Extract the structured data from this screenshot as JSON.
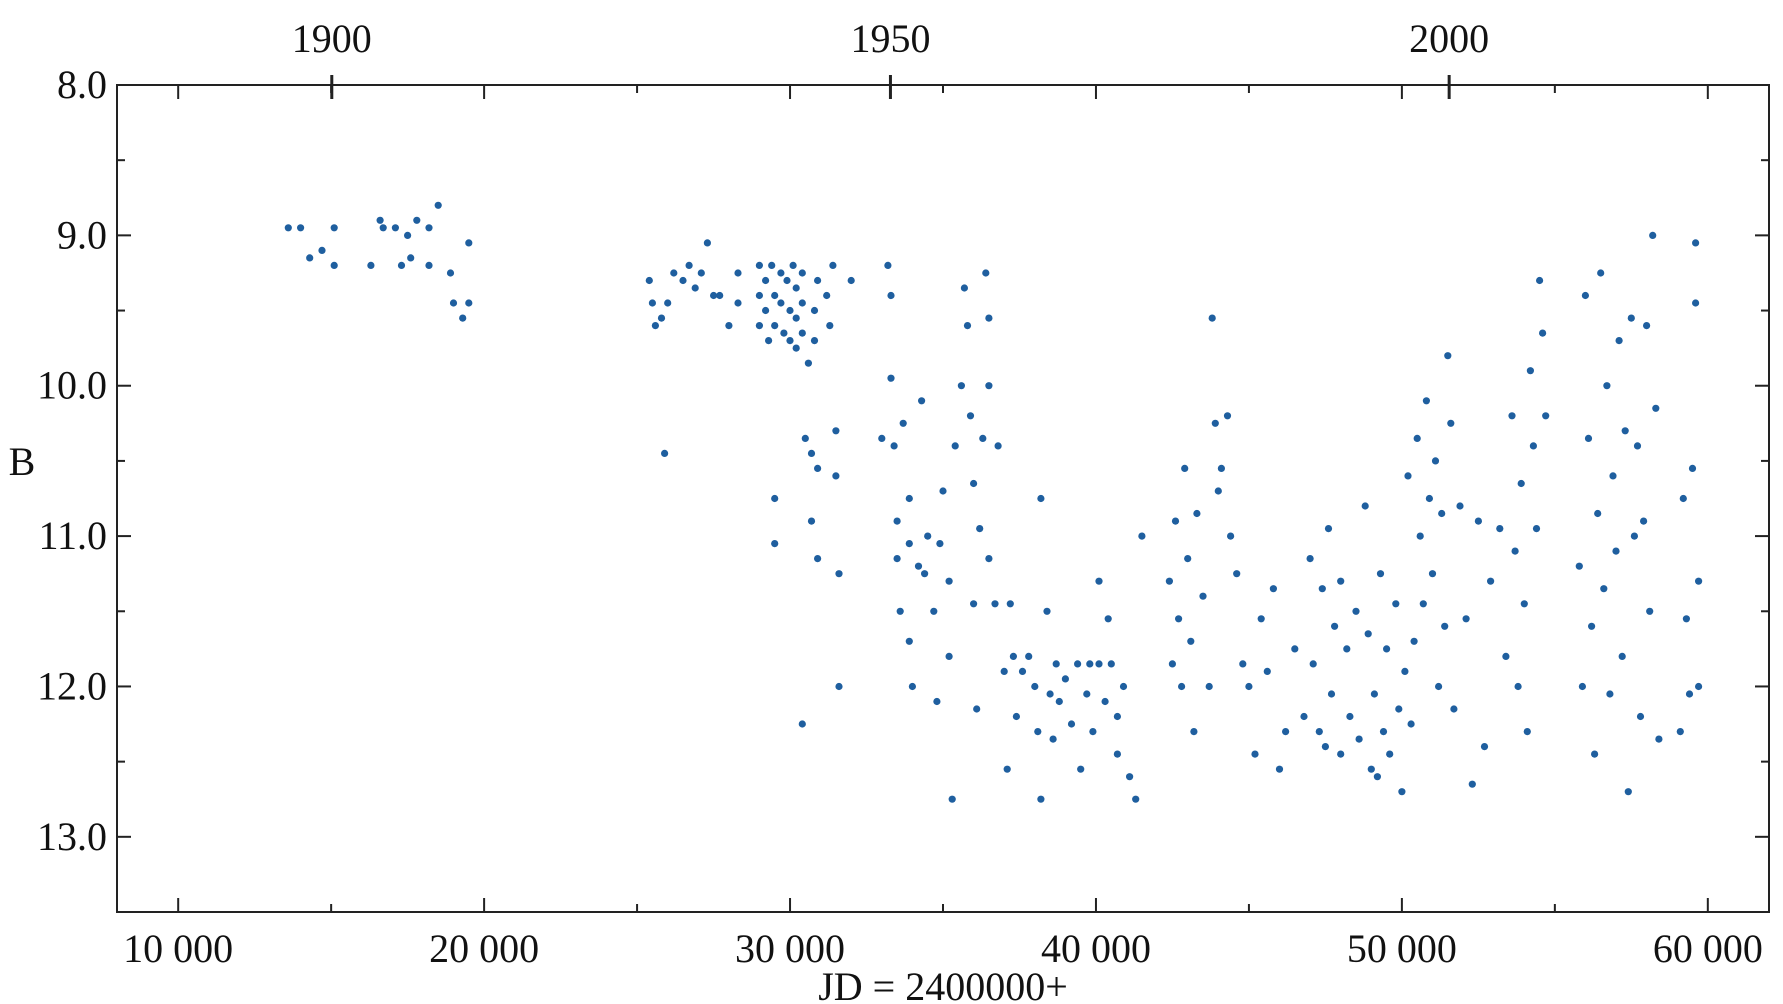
{
  "chart_data": {
    "type": "scatter",
    "title": "",
    "xlabel": "JD = 2400000+",
    "ylabel": "B",
    "xlim": [
      8000,
      62000
    ],
    "ylim": [
      8.0,
      13.5
    ],
    "y_inverted": true,
    "x_ticks": [
      10000,
      20000,
      30000,
      40000,
      50000,
      60000
    ],
    "x_tick_labels": [
      "10 000",
      "20 000",
      "30 000",
      "40 000",
      "50 000",
      "60 000"
    ],
    "y_ticks": [
      8.0,
      9.0,
      10.0,
      11.0,
      12.0,
      13.0
    ],
    "y_tick_labels": [
      "8.0",
      "9.0",
      "10.0",
      "11.0",
      "12.0",
      "13.0"
    ],
    "top_axis": {
      "ticks_jd": [
        15021,
        33282,
        51545
      ],
      "labels": [
        "1900",
        "1950",
        "2000"
      ]
    },
    "grid": false,
    "legend": "none",
    "marker_color": "#1f5f9f",
    "series": [
      {
        "points": [
          [
            13600,
            8.95
          ],
          [
            14000,
            8.95
          ],
          [
            14300,
            9.15
          ],
          [
            14700,
            9.1
          ],
          [
            15100,
            8.95
          ],
          [
            15100,
            9.2
          ],
          [
            16300,
            9.2
          ],
          [
            16600,
            8.9
          ],
          [
            16700,
            8.95
          ],
          [
            17100,
            8.95
          ],
          [
            17300,
            9.2
          ],
          [
            17500,
            9.0
          ],
          [
            17600,
            9.15
          ],
          [
            17800,
            8.9
          ],
          [
            18200,
            9.2
          ],
          [
            18200,
            8.95
          ],
          [
            18500,
            8.8
          ],
          [
            18900,
            9.25
          ],
          [
            19000,
            9.45
          ],
          [
            19300,
            9.55
          ],
          [
            19500,
            9.05
          ],
          [
            19500,
            9.45
          ],
          [
            25400,
            9.3
          ],
          [
            25500,
            9.45
          ],
          [
            25600,
            9.6
          ],
          [
            25800,
            9.55
          ],
          [
            25900,
            10.45
          ],
          [
            26000,
            9.45
          ],
          [
            26200,
            9.25
          ],
          [
            26500,
            9.3
          ],
          [
            26700,
            9.2
          ],
          [
            26900,
            9.35
          ],
          [
            27100,
            9.25
          ],
          [
            27300,
            9.05
          ],
          [
            27500,
            9.4
          ],
          [
            27700,
            9.4
          ],
          [
            28000,
            9.6
          ],
          [
            28300,
            9.25
          ],
          [
            28300,
            9.45
          ],
          [
            29000,
            9.2
          ],
          [
            29000,
            9.4
          ],
          [
            29000,
            9.6
          ],
          [
            29200,
            9.3
          ],
          [
            29200,
            9.5
          ],
          [
            29300,
            9.7
          ],
          [
            29400,
            9.2
          ],
          [
            29500,
            9.4
          ],
          [
            29500,
            9.6
          ],
          [
            29500,
            10.75
          ],
          [
            29500,
            11.05
          ],
          [
            29700,
            9.25
          ],
          [
            29700,
            9.45
          ],
          [
            29800,
            9.65
          ],
          [
            29900,
            9.3
          ],
          [
            30000,
            9.5
          ],
          [
            30000,
            9.7
          ],
          [
            30100,
            9.2
          ],
          [
            30200,
            9.35
          ],
          [
            30200,
            9.55
          ],
          [
            30200,
            9.75
          ],
          [
            30400,
            9.25
          ],
          [
            30400,
            9.45
          ],
          [
            30400,
            9.65
          ],
          [
            30400,
            12.25
          ],
          [
            30500,
            10.35
          ],
          [
            30600,
            9.85
          ],
          [
            30700,
            10.45
          ],
          [
            30700,
            10.9
          ],
          [
            30800,
            9.5
          ],
          [
            30800,
            9.7
          ],
          [
            30900,
            9.3
          ],
          [
            30900,
            10.55
          ],
          [
            30900,
            11.15
          ],
          [
            31200,
            9.4
          ],
          [
            31300,
            9.6
          ],
          [
            31400,
            9.2
          ],
          [
            31500,
            10.3
          ],
          [
            31500,
            10.6
          ],
          [
            31600,
            11.25
          ],
          [
            31600,
            12.0
          ],
          [
            32000,
            9.3
          ],
          [
            33000,
            10.35
          ],
          [
            33200,
            9.2
          ],
          [
            33300,
            9.4
          ],
          [
            33300,
            9.95
          ],
          [
            33400,
            10.4
          ],
          [
            33500,
            10.9
          ],
          [
            33500,
            11.15
          ],
          [
            33600,
            11.5
          ],
          [
            33700,
            10.25
          ],
          [
            33900,
            10.75
          ],
          [
            33900,
            11.05
          ],
          [
            33900,
            11.7
          ],
          [
            34000,
            12.0
          ],
          [
            34200,
            11.2
          ],
          [
            34300,
            10.1
          ],
          [
            34400,
            11.25
          ],
          [
            34500,
            11.0
          ],
          [
            34700,
            11.5
          ],
          [
            34800,
            12.1
          ],
          [
            34900,
            11.05
          ],
          [
            35000,
            10.7
          ],
          [
            35200,
            11.3
          ],
          [
            35200,
            11.8
          ],
          [
            35300,
            12.75
          ],
          [
            35400,
            10.4
          ],
          [
            35600,
            10.0
          ],
          [
            35700,
            9.35
          ],
          [
            35800,
            9.6
          ],
          [
            35900,
            10.2
          ],
          [
            36000,
            10.65
          ],
          [
            36000,
            11.45
          ],
          [
            36100,
            12.15
          ],
          [
            36200,
            10.95
          ],
          [
            36300,
            10.35
          ],
          [
            36400,
            9.25
          ],
          [
            36500,
            9.55
          ],
          [
            36500,
            10.0
          ],
          [
            36500,
            11.15
          ],
          [
            36700,
            11.45
          ],
          [
            36800,
            10.4
          ],
          [
            37000,
            11.9
          ],
          [
            37100,
            12.55
          ],
          [
            37200,
            11.45
          ],
          [
            37300,
            11.8
          ],
          [
            37400,
            12.2
          ],
          [
            37600,
            11.9
          ],
          [
            37800,
            11.8
          ],
          [
            38000,
            12.0
          ],
          [
            38100,
            12.3
          ],
          [
            38200,
            12.75
          ],
          [
            38200,
            10.75
          ],
          [
            38400,
            11.5
          ],
          [
            38500,
            12.05
          ],
          [
            38600,
            12.35
          ],
          [
            38700,
            11.85
          ],
          [
            38800,
            12.1
          ],
          [
            39000,
            11.95
          ],
          [
            39200,
            12.25
          ],
          [
            39400,
            11.85
          ],
          [
            39500,
            12.55
          ],
          [
            39700,
            12.05
          ],
          [
            39800,
            11.85
          ],
          [
            39900,
            12.3
          ],
          [
            40100,
            11.85
          ],
          [
            40100,
            11.3
          ],
          [
            40300,
            12.1
          ],
          [
            40400,
            11.55
          ],
          [
            40500,
            11.85
          ],
          [
            40700,
            12.2
          ],
          [
            40700,
            12.45
          ],
          [
            40900,
            12.0
          ],
          [
            41100,
            12.6
          ],
          [
            41300,
            12.75
          ],
          [
            41500,
            11.0
          ],
          [
            42400,
            11.3
          ],
          [
            42500,
            11.85
          ],
          [
            42600,
            10.9
          ],
          [
            42700,
            11.55
          ],
          [
            42800,
            12.0
          ],
          [
            42900,
            10.55
          ],
          [
            43000,
            11.15
          ],
          [
            43100,
            11.7
          ],
          [
            43200,
            12.3
          ],
          [
            43300,
            10.85
          ],
          [
            43500,
            11.4
          ],
          [
            43700,
            12.0
          ],
          [
            43800,
            9.55
          ],
          [
            43900,
            10.25
          ],
          [
            44000,
            10.7
          ],
          [
            44100,
            10.55
          ],
          [
            44300,
            10.2
          ],
          [
            44400,
            11.0
          ],
          [
            44600,
            11.25
          ],
          [
            44800,
            11.85
          ],
          [
            45000,
            12.0
          ],
          [
            45200,
            12.45
          ],
          [
            45400,
            11.55
          ],
          [
            45600,
            11.9
          ],
          [
            45800,
            11.35
          ],
          [
            46000,
            12.55
          ],
          [
            46200,
            12.3
          ],
          [
            46500,
            11.75
          ],
          [
            46800,
            12.2
          ],
          [
            47000,
            11.15
          ],
          [
            47100,
            11.85
          ],
          [
            47300,
            12.3
          ],
          [
            47400,
            11.35
          ],
          [
            47500,
            12.4
          ],
          [
            47600,
            10.95
          ],
          [
            47700,
            12.05
          ],
          [
            47800,
            11.6
          ],
          [
            48000,
            11.3
          ],
          [
            48000,
            12.45
          ],
          [
            48200,
            11.75
          ],
          [
            48300,
            12.2
          ],
          [
            48500,
            11.5
          ],
          [
            48600,
            12.35
          ],
          [
            48800,
            10.8
          ],
          [
            48900,
            11.65
          ],
          [
            49000,
            12.55
          ],
          [
            49100,
            12.05
          ],
          [
            49200,
            12.6
          ],
          [
            49300,
            11.25
          ],
          [
            49400,
            12.3
          ],
          [
            49500,
            11.75
          ],
          [
            49600,
            12.45
          ],
          [
            49800,
            11.45
          ],
          [
            49900,
            12.15
          ],
          [
            50000,
            12.7
          ],
          [
            50100,
            11.9
          ],
          [
            50200,
            10.6
          ],
          [
            50300,
            12.25
          ],
          [
            50400,
            11.7
          ],
          [
            50500,
            10.35
          ],
          [
            50600,
            11.0
          ],
          [
            50700,
            11.45
          ],
          [
            50800,
            10.1
          ],
          [
            50900,
            10.75
          ],
          [
            51000,
            11.25
          ],
          [
            51100,
            10.5
          ],
          [
            51200,
            12.0
          ],
          [
            51300,
            10.85
          ],
          [
            51400,
            11.6
          ],
          [
            51500,
            9.8
          ],
          [
            51600,
            10.25
          ],
          [
            51700,
            12.15
          ],
          [
            51900,
            10.8
          ],
          [
            52100,
            11.55
          ],
          [
            52300,
            12.65
          ],
          [
            52500,
            10.9
          ],
          [
            52700,
            12.4
          ],
          [
            52900,
            11.3
          ],
          [
            53200,
            10.95
          ],
          [
            53400,
            11.8
          ],
          [
            53600,
            10.2
          ],
          [
            53700,
            11.1
          ],
          [
            53800,
            12.0
          ],
          [
            53900,
            10.65
          ],
          [
            54000,
            11.45
          ],
          [
            54100,
            12.3
          ],
          [
            54200,
            9.9
          ],
          [
            54300,
            10.4
          ],
          [
            54400,
            10.95
          ],
          [
            54500,
            9.3
          ],
          [
            54600,
            9.65
          ],
          [
            54700,
            10.2
          ],
          [
            55800,
            11.2
          ],
          [
            55900,
            12.0
          ],
          [
            56000,
            9.4
          ],
          [
            56100,
            10.35
          ],
          [
            56200,
            11.6
          ],
          [
            56300,
            12.45
          ],
          [
            56400,
            10.85
          ],
          [
            56500,
            9.25
          ],
          [
            56600,
            11.35
          ],
          [
            56700,
            10.0
          ],
          [
            56800,
            12.05
          ],
          [
            56900,
            10.6
          ],
          [
            57000,
            11.1
          ],
          [
            57100,
            9.7
          ],
          [
            57200,
            11.8
          ],
          [
            57300,
            10.3
          ],
          [
            57400,
            12.7
          ],
          [
            57500,
            9.55
          ],
          [
            57600,
            11.0
          ],
          [
            57700,
            10.4
          ],
          [
            57800,
            12.2
          ],
          [
            57900,
            10.9
          ],
          [
            58000,
            9.6
          ],
          [
            58100,
            11.5
          ],
          [
            58200,
            9.0
          ],
          [
            58300,
            10.15
          ],
          [
            58400,
            12.35
          ],
          [
            59100,
            12.3
          ],
          [
            59200,
            10.75
          ],
          [
            59300,
            11.55
          ],
          [
            59400,
            12.05
          ],
          [
            59500,
            10.55
          ],
          [
            59600,
            9.05
          ],
          [
            59600,
            9.45
          ],
          [
            59700,
            11.3
          ],
          [
            59700,
            12.0
          ]
        ]
      }
    ]
  }
}
